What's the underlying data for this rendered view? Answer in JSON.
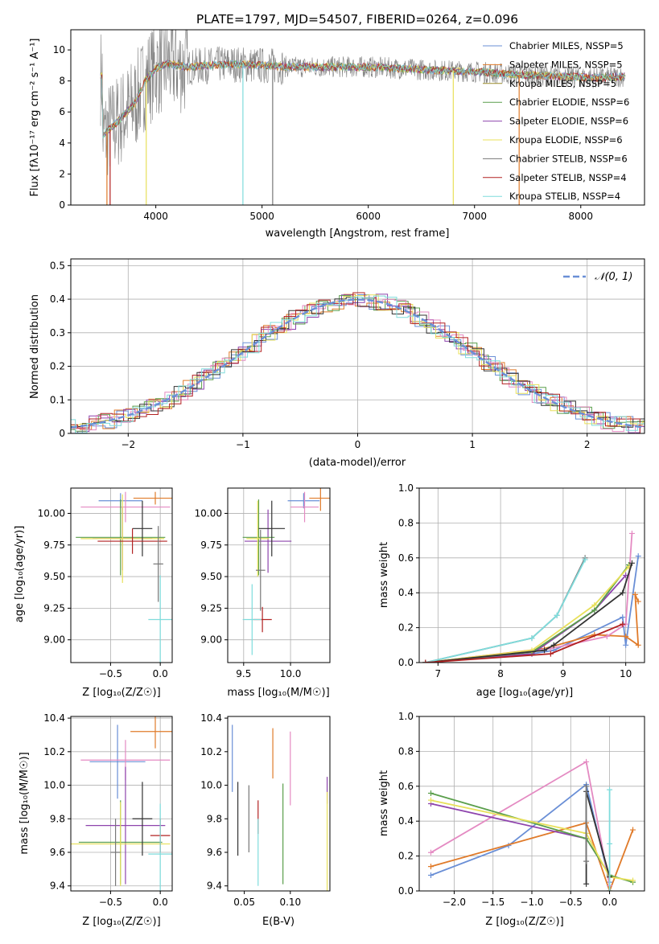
{
  "colors": {
    "c_blue": "#6a8fd6",
    "c_orange": "#e07b2a",
    "c_purple": "#8e44ad",
    "c_green": "#5a9e4b",
    "c_pink": "#e48ac2",
    "c_gray": "#777777",
    "c_yellow": "#e8e05a",
    "c_red": "#b22222",
    "c_cyan": "#7fdcdc",
    "c_dark": "#333333",
    "c_olive": "#9a8c2a"
  },
  "chart_data": [
    {
      "id": "spectrum",
      "type": "line",
      "title": "PLATE=1797, MJD=54507, FIBERID=0264, z=0.096",
      "xlabel": "wavelength [Angstrom, rest frame]",
      "ylabel": "Flux [fλ10⁻¹⁷ erg cm⁻² s⁻¹ A⁻¹]",
      "xlim": [
        3200,
        8600
      ],
      "ylim": [
        0,
        11.3
      ],
      "xticks": [
        4000,
        5000,
        6000,
        7000,
        8000
      ],
      "yticks": [
        0,
        2,
        4,
        6,
        8,
        10
      ],
      "grid": false,
      "legend": "right",
      "series": [
        {
          "name": "Chabrier MILES, NSSP=5",
          "color": "c_blue"
        },
        {
          "name": "Salpeter MILES, NSSP=5",
          "color": "c_orange"
        },
        {
          "name": "Kroupa MILES, NSSP=5",
          "color": "c_olive"
        },
        {
          "name": "Chabrier ELODIE, NSSP=6",
          "color": "c_green"
        },
        {
          "name": "Salpeter ELODIE, NSSP=6",
          "color": "c_purple"
        },
        {
          "name": "Kroupa ELODIE, NSSP=6",
          "color": "c_yellow"
        },
        {
          "name": "Chabrier STELIB, NSSP=6",
          "color": "c_gray"
        },
        {
          "name": "Salpeter STELIB, NSSP=4",
          "color": "c_red"
        },
        {
          "name": "Kroupa STELIB, NSSP=4",
          "color": "c_cyan"
        }
      ],
      "continuum": {
        "x": [
          3500,
          3600,
          3700,
          3800,
          3900,
          4000,
          4100,
          4200,
          4300,
          4500,
          4700,
          5000,
          5300,
          5600,
          6000,
          6300,
          6600,
          7000,
          7400,
          7800,
          8200,
          8400
        ],
        "y": [
          4.5,
          5.1,
          5.8,
          6.5,
          8.0,
          8.8,
          9.1,
          9.0,
          8.9,
          9.0,
          9.1,
          9.0,
          8.9,
          8.9,
          8.9,
          8.8,
          8.7,
          8.6,
          8.4,
          8.3,
          8.2,
          8.3
        ]
      }
    },
    {
      "id": "histogram",
      "type": "line",
      "xlabel": "(data-model)/error",
      "ylabel": "Normed distribution",
      "xlim": [
        -2.5,
        2.5
      ],
      "ylim": [
        0,
        0.52
      ],
      "xticks": [
        -2,
        -1,
        0,
        1,
        2
      ],
      "yticks": [
        0.0,
        0.1,
        0.2,
        0.3,
        0.4,
        0.5
      ],
      "grid": true,
      "legend": "top-right",
      "gaussian_label": "𝒩(0, 1)",
      "gaussian_color": "c_blue"
    },
    {
      "id": "age_vs_z",
      "type": "scatter",
      "xlabel": "Z [log₁₀(Z/Z☉)]",
      "ylabel": "age  [log₁₀(age/yr)]",
      "xlim": [
        -0.9,
        0.12
      ],
      "ylim": [
        8.82,
        10.2
      ],
      "xticks": [
        -0.5,
        0.0
      ],
      "yticks": [
        9.0,
        9.25,
        9.5,
        9.75,
        10.0
      ],
      "grid": true,
      "points": [
        {
          "color": "c_blue",
          "x": -0.4,
          "xerr": 0.22,
          "y": 10.1,
          "yerr": 0.06
        },
        {
          "color": "c_orange",
          "x": -0.05,
          "xerr": 0.22,
          "y": 10.12,
          "yerr": 0.05
        },
        {
          "color": "c_pink",
          "x": -0.35,
          "xerr": 0.45,
          "y": 10.05,
          "yerr": 0.12
        },
        {
          "color": "c_purple",
          "x": -0.38,
          "xerr": 0.3,
          "y": 9.8,
          "yerr": 0.25
        },
        {
          "color": "c_green",
          "x": -0.4,
          "xerr": 0.45,
          "y": 9.81,
          "yerr": 0.3
        },
        {
          "color": "c_yellow",
          "x": -0.38,
          "xerr": 0.42,
          "y": 9.8,
          "yerr": 0.35
        },
        {
          "color": "c_dark",
          "x": -0.18,
          "xerr": 0.1,
          "y": 9.88,
          "yerr": 0.22
        },
        {
          "color": "c_red",
          "x": -0.28,
          "xerr": 0.35,
          "y": 9.78,
          "yerr": 0.1
        },
        {
          "color": "c_cyan",
          "x": 0.0,
          "xerr": 0.12,
          "y": 9.16,
          "yerr": 0.35
        },
        {
          "color": "c_gray",
          "x": -0.02,
          "xerr": 0.05,
          "y": 9.6,
          "yerr": 0.3
        }
      ]
    },
    {
      "id": "age_vs_mass",
      "type": "scatter",
      "xlabel": "mass [log₁₀(M/M☉)]",
      "ylabel": "",
      "xlim": [
        9.33,
        10.42
      ],
      "ylim": [
        8.82,
        10.2
      ],
      "xticks": [
        9.5,
        10.0
      ],
      "yticks": [
        9.0,
        9.25,
        9.5,
        9.75,
        10.0
      ],
      "grid": true,
      "points": [
        {
          "color": "c_blue",
          "x": 10.14,
          "xerr": 0.17,
          "y": 10.1,
          "yerr": 0.06
        },
        {
          "color": "c_orange",
          "x": 10.32,
          "xerr": 0.12,
          "y": 10.12,
          "yerr": 0.1
        },
        {
          "color": "c_pink",
          "x": 10.15,
          "xerr": 0.15,
          "y": 10.05,
          "yerr": 0.12
        },
        {
          "color": "c_purple",
          "x": 9.76,
          "xerr": 0.25,
          "y": 9.78,
          "yerr": 0.25
        },
        {
          "color": "c_green",
          "x": 9.66,
          "xerr": 0.17,
          "y": 9.81,
          "yerr": 0.3
        },
        {
          "color": "c_yellow",
          "x": 9.65,
          "xerr": 0.12,
          "y": 9.8,
          "yerr": 0.3
        },
        {
          "color": "c_dark",
          "x": 9.8,
          "xerr": 0.14,
          "y": 9.88,
          "yerr": 0.22
        },
        {
          "color": "c_red",
          "x": 9.7,
          "xerr": 0.1,
          "y": 9.16,
          "yerr": 0.1
        },
        {
          "color": "c_cyan",
          "x": 9.59,
          "xerr": 0.1,
          "y": 9.16,
          "yerr": 0.28
        },
        {
          "color": "c_gray",
          "x": 9.68,
          "xerr": 0.05,
          "y": 9.55,
          "yerr": 0.32
        }
      ]
    },
    {
      "id": "weight_vs_age",
      "type": "line",
      "xlabel": "age  [log₁₀(age/yr)]",
      "ylabel": "mass weight",
      "xlim": [
        6.7,
        10.3
      ],
      "ylim": [
        0,
        1.0
      ],
      "xticks": [
        7,
        8,
        9,
        10
      ],
      "yticks": [
        0.0,
        0.2,
        0.4,
        0.6,
        0.8,
        1.0
      ],
      "grid": true,
      "series": [
        {
          "color": "c_blue",
          "x": [
            6.8,
            8.5,
            8.85,
            9.95,
            10.0,
            10.2
          ],
          "y": [
            0.0,
            0.05,
            0.07,
            0.26,
            0.1,
            0.61
          ]
        },
        {
          "color": "c_orange",
          "x": [
            6.8,
            8.7,
            9.5,
            10.0,
            10.2,
            10.15,
            10.2
          ],
          "y": [
            0.0,
            0.08,
            0.16,
            0.15,
            0.1,
            0.39,
            0.35
          ]
        },
        {
          "color": "c_pink",
          "x": [
            6.8,
            8.8,
            9.7,
            10.0,
            10.1
          ],
          "y": [
            0.0,
            0.08,
            0.15,
            0.22,
            0.74
          ]
        },
        {
          "color": "c_purple",
          "x": [
            6.8,
            8.5,
            9.5,
            10.0
          ],
          "y": [
            0.0,
            0.05,
            0.3,
            0.5
          ]
        },
        {
          "color": "c_green",
          "x": [
            6.8,
            8.5,
            9.5,
            10.05
          ],
          "y": [
            0.0,
            0.06,
            0.3,
            0.56
          ]
        },
        {
          "color": "c_yellow",
          "x": [
            6.8,
            8.5,
            9.5,
            10.05
          ],
          "y": [
            0.0,
            0.07,
            0.33,
            0.55
          ]
        },
        {
          "color": "c_dark",
          "x": [
            6.8,
            8.7,
            8.85,
            9.95,
            10.1
          ],
          "y": [
            0.0,
            0.07,
            0.1,
            0.4,
            0.57
          ]
        },
        {
          "color": "c_gray",
          "x": [
            6.8,
            8.5,
            8.9,
            9.35
          ],
          "y": [
            0.0,
            0.14,
            0.27,
            0.6
          ]
        },
        {
          "color": "c_cyan",
          "x": [
            6.8,
            8.5,
            8.9,
            9.35
          ],
          "y": [
            0.0,
            0.14,
            0.27,
            0.59
          ]
        },
        {
          "color": "c_red",
          "x": [
            6.8,
            8.8,
            9.95
          ],
          "y": [
            0.0,
            0.05,
            0.22
          ]
        }
      ]
    },
    {
      "id": "mass_vs_z",
      "type": "scatter",
      "xlabel": "Z [log₁₀(Z/Z☉)]",
      "ylabel": "mass [log₁₀(M/M☉)]",
      "xlim": [
        -0.9,
        0.12
      ],
      "ylim": [
        9.37,
        10.41
      ],
      "xticks": [
        -0.5,
        0.0
      ],
      "yticks": [
        9.4,
        9.6,
        9.8,
        10.0,
        10.2,
        10.4
      ],
      "grid": true,
      "points": [
        {
          "color": "c_blue",
          "x": -0.43,
          "xerr": 0.28,
          "y": 10.14,
          "yerr": 0.22
        },
        {
          "color": "c_orange",
          "x": -0.05,
          "xerr": 0.25,
          "y": 10.32,
          "yerr": 0.1
        },
        {
          "color": "c_pink",
          "x": -0.35,
          "xerr": 0.45,
          "y": 10.15,
          "yerr": 0.12
        },
        {
          "color": "c_purple",
          "x": -0.35,
          "xerr": 0.4,
          "y": 9.76,
          "yerr": 0.35
        },
        {
          "color": "c_green",
          "x": -0.4,
          "xerr": 0.42,
          "y": 9.66,
          "yerr": 0.25
        },
        {
          "color": "c_yellow",
          "x": -0.4,
          "xerr": 0.5,
          "y": 9.65,
          "yerr": 0.25
        },
        {
          "color": "c_dark",
          "x": -0.18,
          "xerr": 0.1,
          "y": 9.8,
          "yerr": 0.22
        },
        {
          "color": "c_red",
          "x": 0.0,
          "xerr": 0.1,
          "y": 9.7,
          "yerr": 0.1
        },
        {
          "color": "c_cyan",
          "x": 0.0,
          "xerr": 0.12,
          "y": 9.59,
          "yerr": 0.3
        },
        {
          "color": "c_gray",
          "x": -0.45,
          "xerr": 0.05,
          "y": 9.6,
          "yerr": 0.2
        }
      ]
    },
    {
      "id": "mass_vs_ebv",
      "type": "scatter",
      "xlabel": "E(B-V)",
      "ylabel": "",
      "xlim": [
        0.032,
        0.143
      ],
      "ylim": [
        9.37,
        10.41
      ],
      "xticks": [
        0.05,
        0.1
      ],
      "yticks": [
        9.4,
        9.6,
        9.8,
        10.0,
        10.2,
        10.4
      ],
      "grid": false,
      "points": [
        {
          "color": "c_blue",
          "x": 0.037,
          "yerr": 0.2,
          "y": 10.16
        },
        {
          "color": "c_orange",
          "x": 0.081,
          "yerr": 0.15,
          "y": 10.19
        },
        {
          "color": "c_pink",
          "x": 0.1,
          "yerr": 0.22,
          "y": 10.1
        },
        {
          "color": "c_purple",
          "x": 0.14,
          "yerr": 0.08,
          "y": 9.97
        },
        {
          "color": "c_green",
          "x": 0.092,
          "yerr": 0.3,
          "y": 9.71
        },
        {
          "color": "c_yellow",
          "x": 0.14,
          "yerr": 0.3,
          "y": 9.66
        },
        {
          "color": "c_dark",
          "x": 0.043,
          "yerr": 0.22,
          "y": 9.8
        },
        {
          "color": "c_red",
          "x": 0.065,
          "yerr": 0.1,
          "y": 9.81
        },
        {
          "color": "c_cyan",
          "x": 0.065,
          "yerr": 0.2,
          "y": 9.6
        },
        {
          "color": "c_gray",
          "x": 0.055,
          "yerr": 0.2,
          "y": 9.8
        }
      ]
    },
    {
      "id": "weight_vs_z",
      "type": "line",
      "xlabel": "Z [log₁₀(Z/Z☉)]",
      "ylabel": "mass weight",
      "xlim": [
        -2.45,
        0.45
      ],
      "ylim": [
        0,
        1.0
      ],
      "xticks": [
        -2.0,
        -1.5,
        -1.0,
        -0.5,
        0.0
      ],
      "yticks": [
        0.0,
        0.2,
        0.4,
        0.6,
        0.8,
        1.0
      ],
      "grid": true,
      "series": [
        {
          "color": "c_blue",
          "x": [
            -2.3,
            -1.3,
            -0.3,
            0.0
          ],
          "y": [
            0.09,
            0.26,
            0.61,
            0.05
          ]
        },
        {
          "color": "c_orange",
          "x": [
            -2.3,
            -0.3,
            0.0,
            0.3
          ],
          "y": [
            0.14,
            0.39,
            0.0,
            0.35
          ]
        },
        {
          "color": "c_pink",
          "x": [
            -2.3,
            -0.3,
            0.0
          ],
          "y": [
            0.22,
            0.74,
            0.03
          ]
        },
        {
          "color": "c_purple",
          "x": [
            -2.3,
            -0.3,
            0.0
          ],
          "y": [
            0.5,
            0.3,
            0.09
          ]
        },
        {
          "color": "c_green",
          "x": [
            -2.3,
            -0.3,
            0.0,
            0.3
          ],
          "y": [
            0.56,
            0.3,
            0.09,
            0.05
          ]
        },
        {
          "color": "c_yellow",
          "x": [
            -2.3,
            -0.3,
            0.0,
            0.3
          ],
          "y": [
            0.52,
            0.33,
            0.08,
            0.06
          ]
        },
        {
          "color": "c_dark",
          "x": [
            -0.3,
            -0.3,
            0.0
          ],
          "y": [
            0.04,
            0.57,
            0.08
          ]
        },
        {
          "color": "c_cyan",
          "x": [
            0.0,
            0.0,
            0.0
          ],
          "y": [
            0.0,
            0.27,
            0.58
          ]
        },
        {
          "color": "c_gray",
          "x": [
            -0.3,
            -0.3
          ],
          "y": [
            0.17,
            0.6
          ]
        }
      ]
    }
  ]
}
